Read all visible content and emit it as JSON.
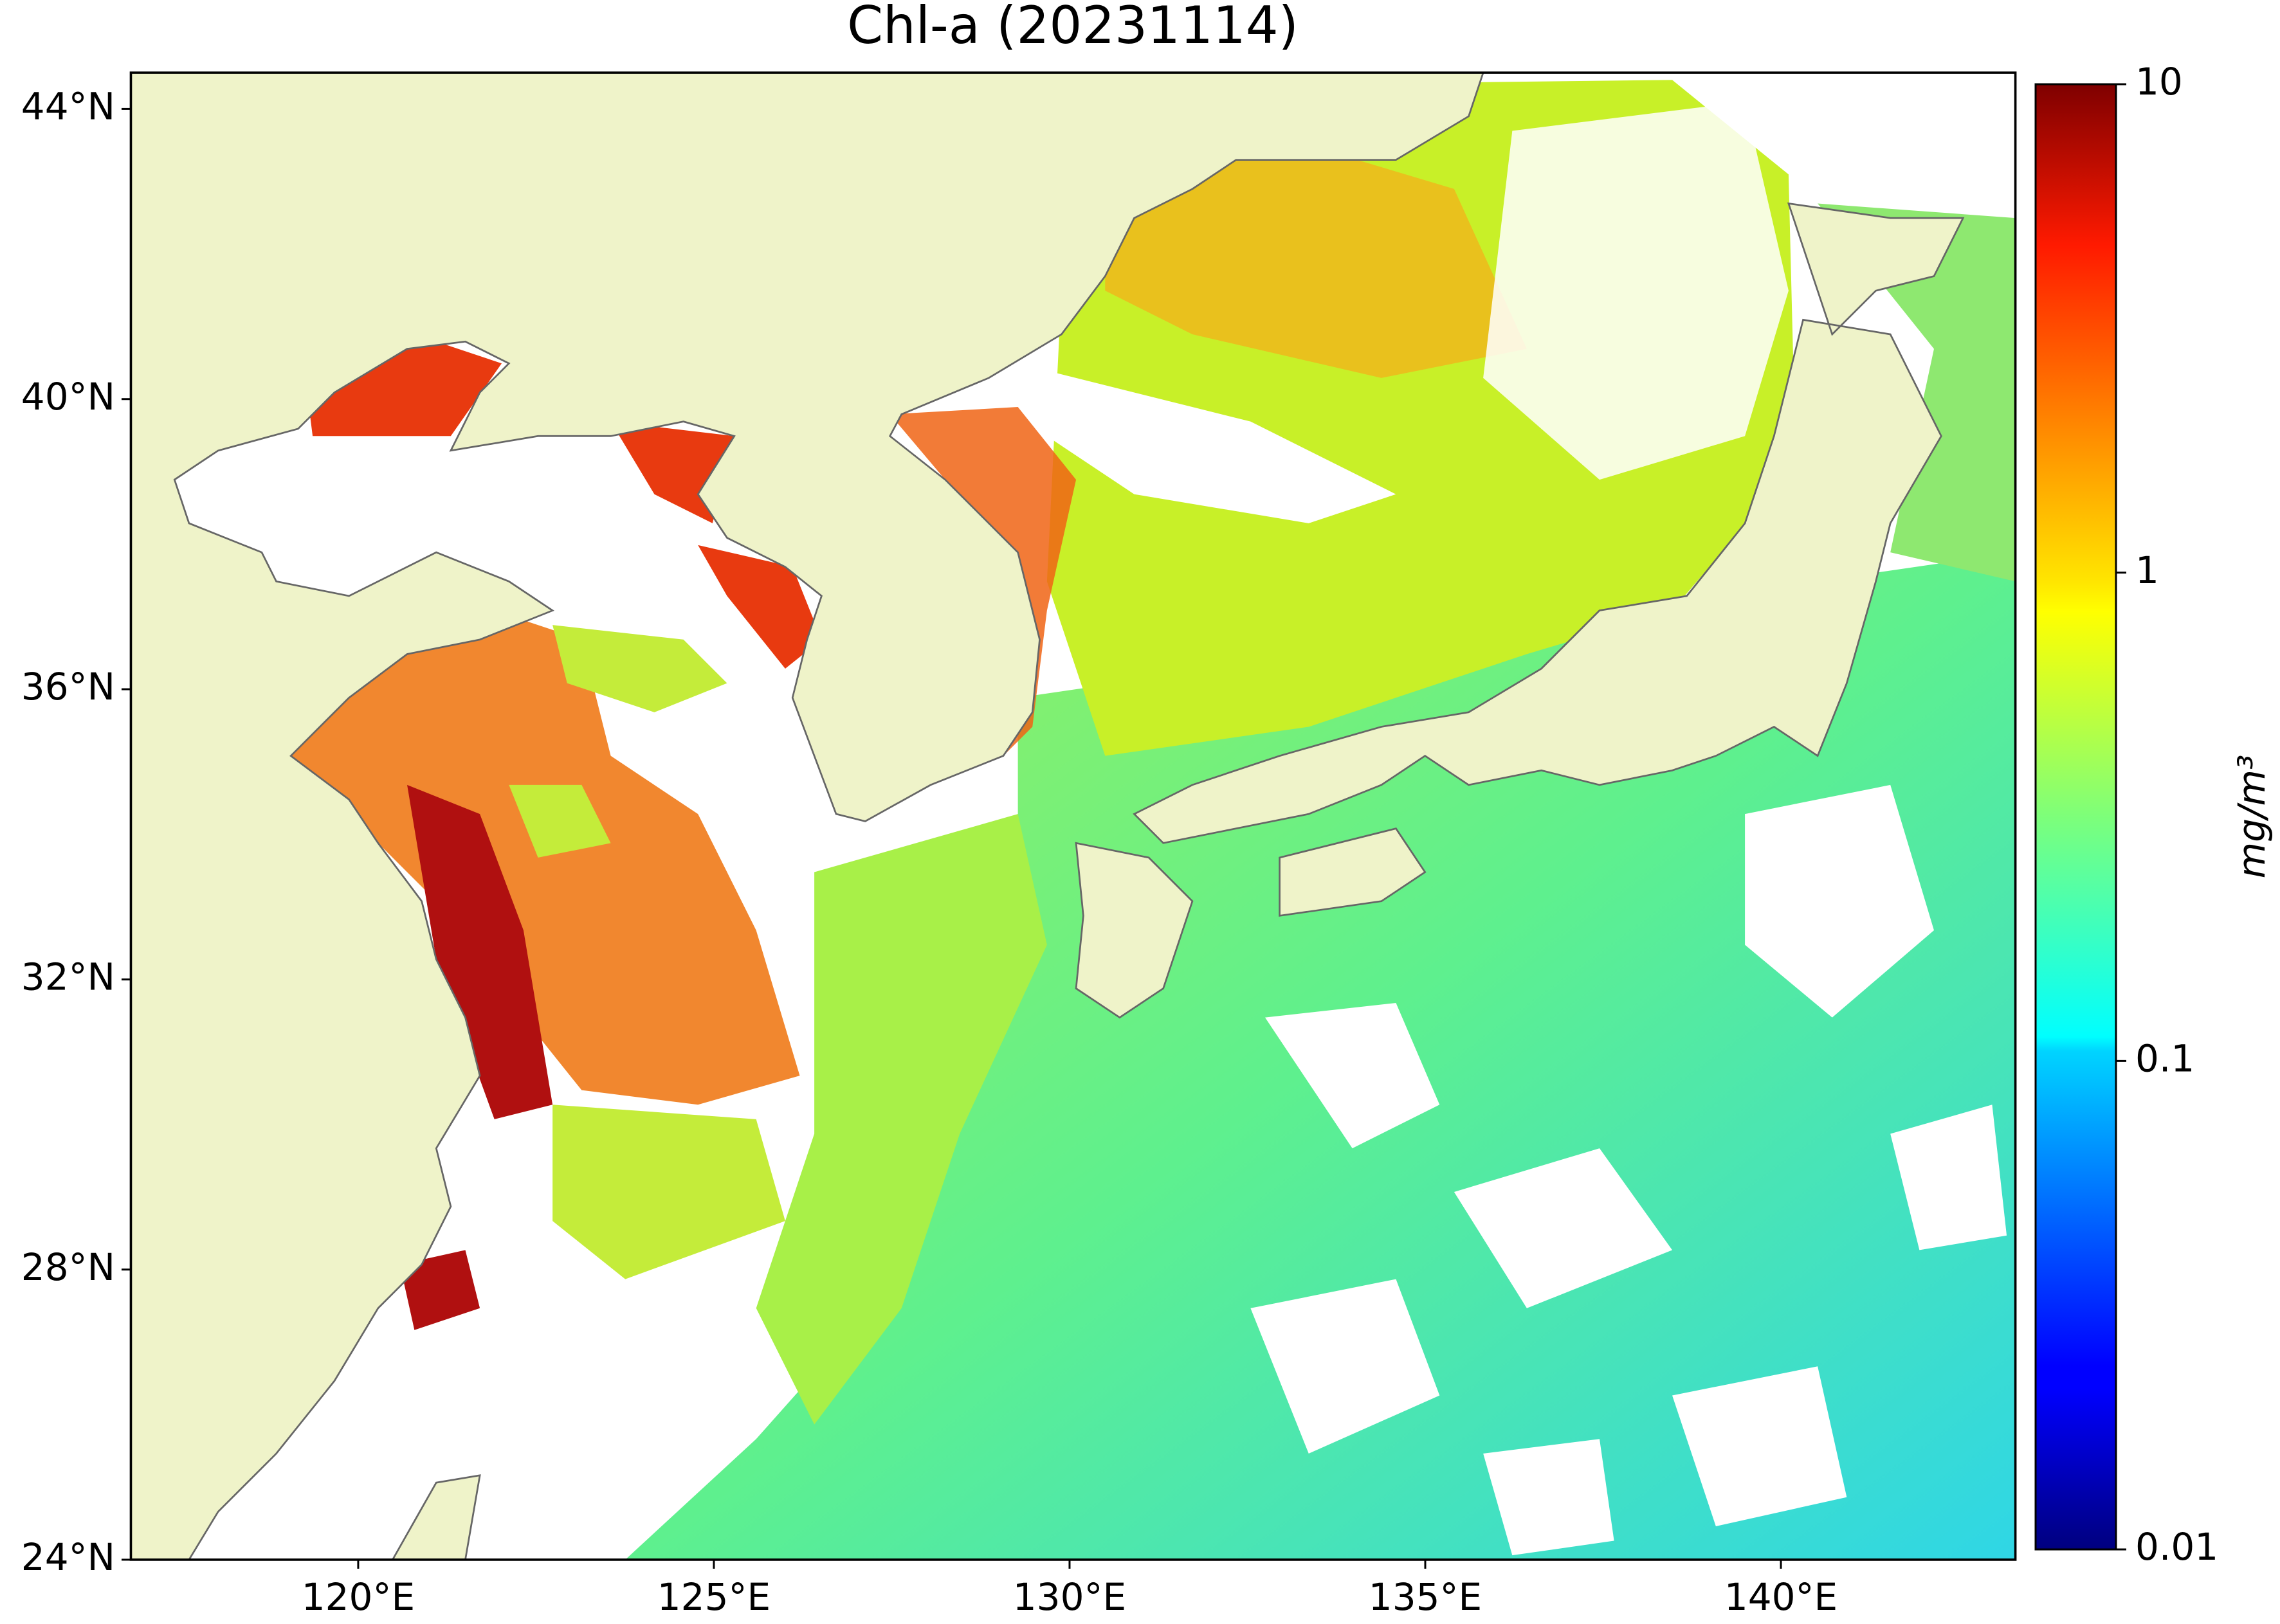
{
  "chart_data": {
    "type": "map",
    "title": "Chl-a (20231114)",
    "xlim": [
      116.8,
      143.3
    ],
    "ylim": [
      24,
      44.5
    ],
    "xticks": [
      {
        "value": 120,
        "label": "120°E"
      },
      {
        "value": 125,
        "label": "125°E"
      },
      {
        "value": 130,
        "label": "130°E"
      },
      {
        "value": 135,
        "label": "135°E"
      },
      {
        "value": 140,
        "label": "140°E"
      }
    ],
    "yticks": [
      {
        "value": 24,
        "label": "24°N"
      },
      {
        "value": 28,
        "label": "28°N"
      },
      {
        "value": 32,
        "label": "32°N"
      },
      {
        "value": 36,
        "label": "36°N"
      },
      {
        "value": 40,
        "label": "40°N"
      },
      {
        "value": 44,
        "label": "44°N"
      }
    ],
    "colorbar": {
      "label": "mg/m³",
      "scale": "log",
      "colormap": "jet",
      "lim": [
        0.01,
        10
      ],
      "ticks": [
        0.01,
        0.1,
        1,
        10
      ]
    }
  }
}
